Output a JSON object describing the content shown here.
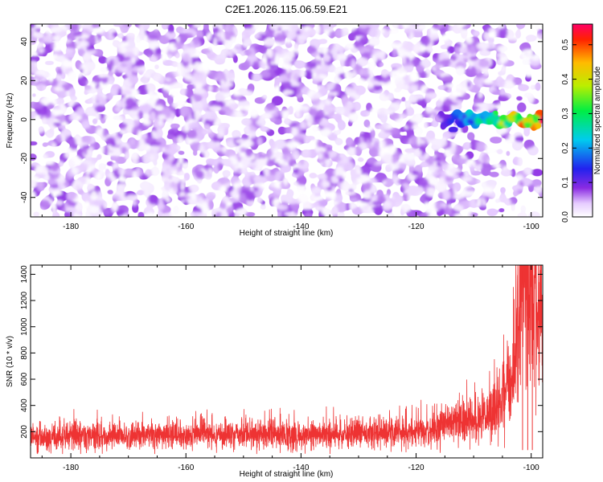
{
  "figure_title": "C2E1.2026.115.06.59.E21",
  "chart_data": [
    {
      "type": "heatmap",
      "panel": "spectrogram",
      "xlabel": "Height of straight line (km)",
      "ylabel": "Frequency (Hz)",
      "xlim": [
        -187,
        -98
      ],
      "ylim": [
        -50,
        49
      ],
      "x_ticks": [
        -180,
        -160,
        -140,
        -120,
        -100
      ],
      "y_ticks": [
        -40,
        -20,
        0,
        20,
        40
      ],
      "colorbar": {
        "label": "Normalized spectral amplitude",
        "range": [
          0.0,
          0.56
        ],
        "ticks": [
          0.0,
          0.1,
          0.2,
          0.3,
          0.4,
          0.5
        ],
        "colormap": "rainbow (white-purple-blue-cyan-green-yellow-red)"
      },
      "description_of_data": {
        "background_amplitude_range": [
          0.0,
          0.08
        ],
        "ridge": {
          "frequency_hz": 0,
          "start_height_km": -116,
          "end_height_km": -98,
          "peak_amplitude": 0.56
        }
      }
    },
    {
      "type": "line",
      "panel": "snr",
      "xlabel": "Height of straight line (km)",
      "ylabel": "SNR (10 * v/v)",
      "xlim": [
        -187,
        -98
      ],
      "ylim": [
        0,
        1470
      ],
      "x_ticks": [
        -180,
        -160,
        -140,
        -120,
        -100
      ],
      "y_ticks": [
        200,
        400,
        600,
        800,
        1000,
        1200,
        1400
      ],
      "series": [
        {
          "name": "SNR",
          "color": "#ee3333",
          "baseline_mean": 160,
          "noise_envelope": [
            30,
            400
          ],
          "points": [
            {
              "x": -187,
              "y": 150
            },
            {
              "x": -180,
              "y": 170
            },
            {
              "x": -170,
              "y": 165
            },
            {
              "x": -160,
              "y": 175
            },
            {
              "x": -150,
              "y": 180
            },
            {
              "x": -140,
              "y": 175
            },
            {
              "x": -130,
              "y": 185
            },
            {
              "x": -120,
              "y": 195
            },
            {
              "x": -115,
              "y": 240
            },
            {
              "x": -110,
              "y": 280
            },
            {
              "x": -106,
              "y": 380
            },
            {
              "x": -103,
              "y": 600
            },
            {
              "x": -101.5,
              "y": 1430
            },
            {
              "x": -100.5,
              "y": 1240
            },
            {
              "x": -99.5,
              "y": 1240
            },
            {
              "x": -98.5,
              "y": 1080
            }
          ],
          "peaks": [
            {
              "x": -101.5,
              "y": 1430
            },
            {
              "x": -100.6,
              "y": 1240
            },
            {
              "x": -99.8,
              "y": 1240
            }
          ]
        }
      ]
    }
  ]
}
